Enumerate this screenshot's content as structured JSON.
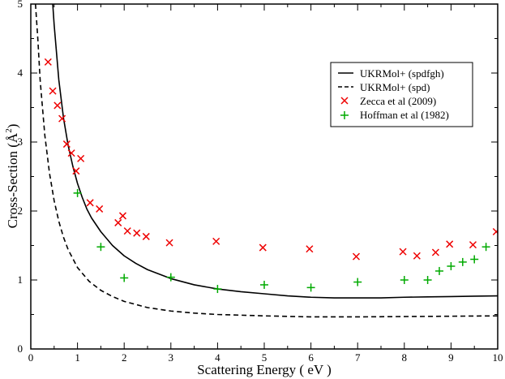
{
  "chart_data": {
    "type": "line",
    "title": "",
    "xlabel": "Scattering Energy ( eV )",
    "ylabel_parts": {
      "prefix": "Cross-Section  (",
      "unit": "Å",
      "exp": "2",
      "suffix": ")"
    },
    "xlim": [
      0,
      10
    ],
    "ylim": [
      0,
      5
    ],
    "x_ticks": [
      0,
      1,
      2,
      3,
      4,
      5,
      6,
      7,
      8,
      9,
      10
    ],
    "y_ticks": [
      0,
      1,
      2,
      3,
      4,
      5
    ],
    "grid": false,
    "legend_position": "upper-right",
    "series": [
      {
        "name": "UKRMol+ (spdfgh)",
        "kind": "line",
        "style": "solid",
        "color": "#000000",
        "x": [
          0.47,
          0.5,
          0.55,
          0.6,
          0.7,
          0.8,
          0.9,
          1.0,
          1.1,
          1.2,
          1.3,
          1.5,
          1.75,
          2.0,
          2.25,
          2.5,
          3.0,
          3.5,
          4.0,
          4.5,
          5.0,
          5.5,
          6.0,
          6.5,
          7.0,
          7.5,
          8.0,
          8.5,
          9.0,
          9.5,
          10.0
        ],
        "y": [
          5.0,
          4.7,
          4.3,
          3.9,
          3.35,
          2.95,
          2.65,
          2.4,
          2.2,
          2.03,
          1.9,
          1.7,
          1.5,
          1.35,
          1.24,
          1.15,
          1.02,
          0.93,
          0.87,
          0.83,
          0.8,
          0.77,
          0.75,
          0.74,
          0.74,
          0.74,
          0.75,
          0.755,
          0.76,
          0.765,
          0.77
        ]
      },
      {
        "name": "UKRMol+ (spd)",
        "kind": "line",
        "style": "dashed",
        "color": "#000000",
        "x": [
          0.1,
          0.15,
          0.2,
          0.3,
          0.4,
          0.5,
          0.6,
          0.7,
          0.8,
          1.0,
          1.25,
          1.5,
          1.75,
          2.0,
          2.5,
          3.0,
          3.5,
          4.0,
          5.0,
          6.0,
          7.0,
          8.0,
          9.0,
          10.0
        ],
        "y": [
          5.0,
          4.5,
          3.9,
          3.1,
          2.55,
          2.15,
          1.85,
          1.62,
          1.44,
          1.18,
          0.98,
          0.85,
          0.76,
          0.69,
          0.6,
          0.55,
          0.52,
          0.5,
          0.48,
          0.465,
          0.465,
          0.47,
          0.475,
          0.48
        ]
      },
      {
        "name": "Zecca et al (2009)",
        "kind": "scatter",
        "marker": "x",
        "color": "#ee0000",
        "x": [
          0.37,
          0.47,
          0.57,
          0.67,
          0.77,
          0.87,
          0.97,
          1.07,
          1.27,
          1.47,
          1.87,
          1.97,
          2.07,
          2.27,
          2.47,
          2.97,
          3.97,
          4.97,
          5.97,
          6.97,
          7.97,
          8.27,
          8.67,
          8.97,
          9.47,
          9.97
        ],
        "y": [
          4.16,
          3.74,
          3.53,
          3.34,
          2.97,
          2.84,
          2.58,
          2.76,
          2.12,
          2.03,
          1.83,
          1.93,
          1.71,
          1.68,
          1.63,
          1.54,
          1.56,
          1.47,
          1.45,
          1.34,
          1.41,
          1.35,
          1.4,
          1.52,
          1.51,
          1.7
        ]
      },
      {
        "name": "Hoffman et al (1982)",
        "kind": "scatter",
        "marker": "+",
        "color": "#00aa00",
        "x": [
          1.0,
          1.5,
          2.0,
          3.0,
          4.0,
          5.0,
          6.0,
          7.0,
          8.0,
          8.5,
          8.75,
          9.0,
          9.25,
          9.5,
          9.75
        ],
        "y": [
          2.26,
          1.48,
          1.03,
          1.04,
          0.87,
          0.93,
          0.89,
          0.97,
          1.0,
          1.0,
          1.13,
          1.2,
          1.26,
          1.3,
          1.48
        ]
      }
    ]
  }
}
